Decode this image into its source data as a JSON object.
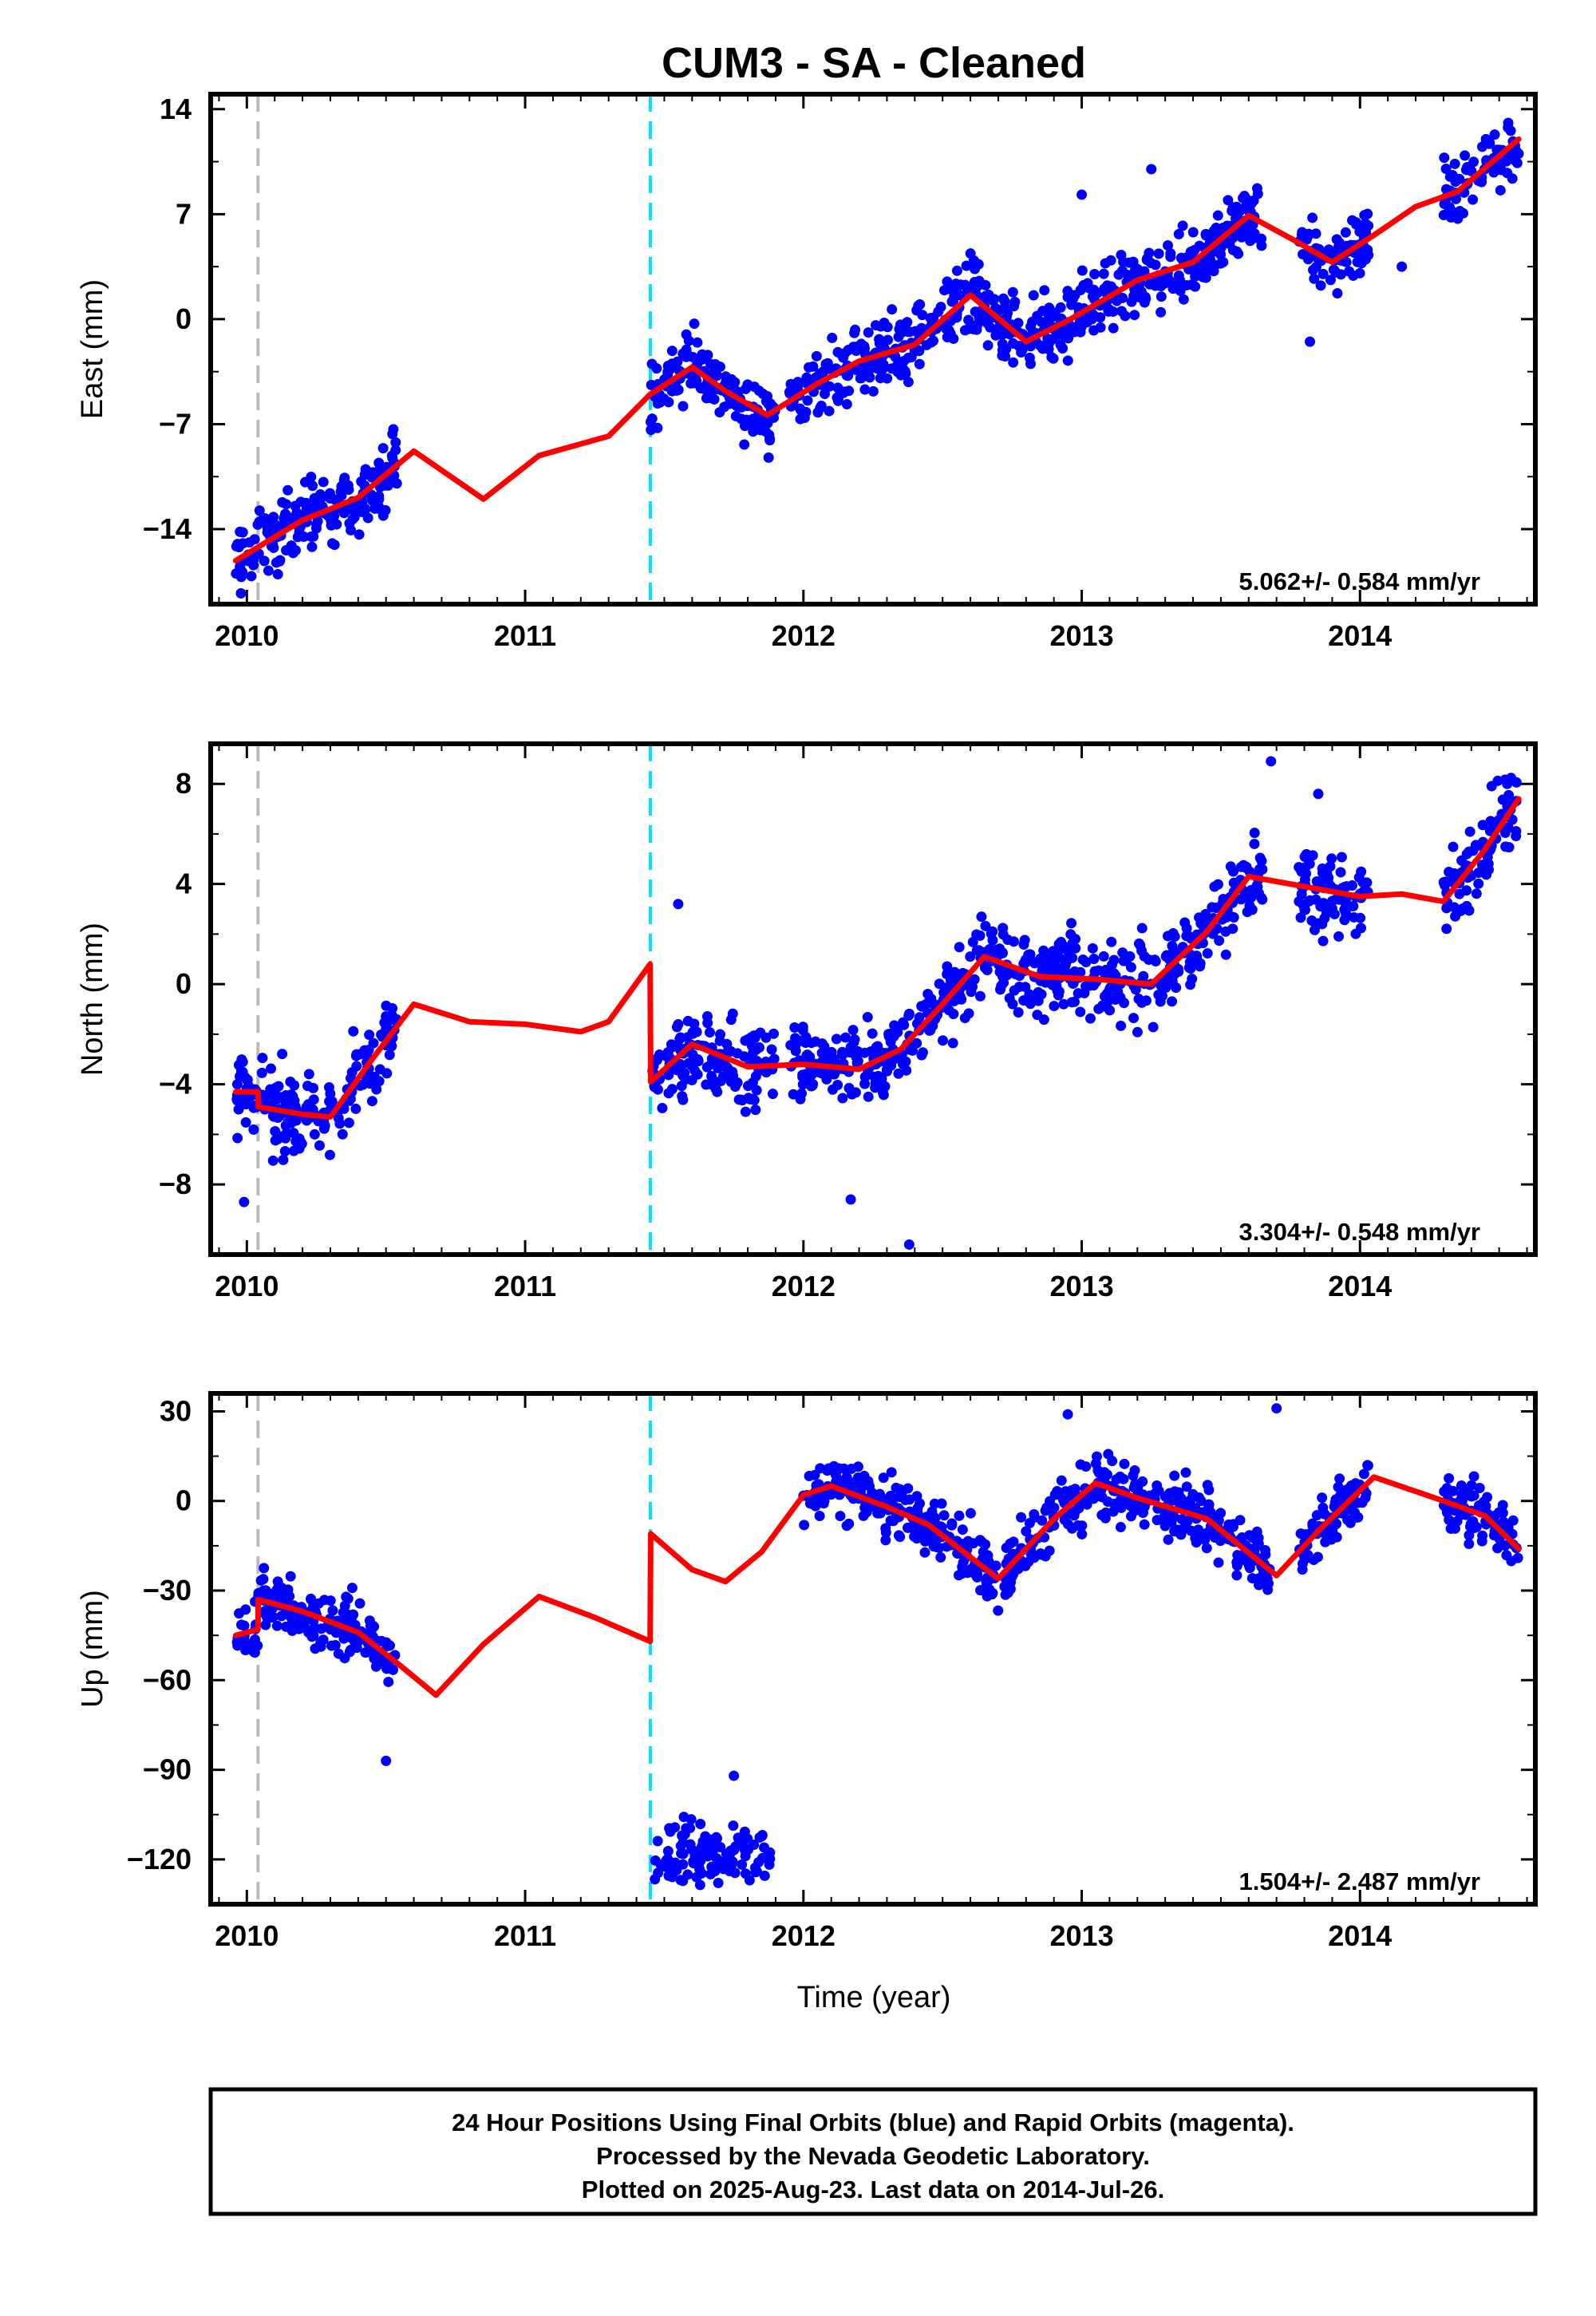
{
  "title": "CUM3  - SA - Cleaned",
  "xlabel": "Time (year)",
  "caption": [
    "24 Hour Positions Using Final Orbits (blue) and Rapid Orbits (magenta).",
    "Processed by the Nevada Geodetic Laboratory.",
    "Plotted on 2025-Aug-23. Last data on 2014-Jul-26."
  ],
  "colors": {
    "points": "#0000ff",
    "model": "#ff0000",
    "equipment_change": "#bbbbbb",
    "event": "#00e5ff"
  },
  "chart_data": [
    {
      "type": "scatter",
      "name": "east",
      "ylabel": "East (mm)",
      "rate_label": "5.062+/- 0.584 mm/yr",
      "xlim": [
        2009.87,
        2014.63
      ],
      "ylim": [
        -19,
        15
      ],
      "xticks": [
        "2010",
        "2011",
        "2012",
        "2013",
        "2014"
      ],
      "yticks": [
        "14",
        "7",
        "0",
        "−7",
        "−14"
      ],
      "ytick_values": [
        14,
        7,
        0,
        -7,
        -14
      ],
      "vlines": [
        {
          "x": 2010.04,
          "color": "gray"
        },
        {
          "x": 2011.45,
          "color": "cyan"
        }
      ],
      "data_segments": [
        [
          2009.96,
          2010.54
        ],
        [
          2011.45,
          2011.9
        ],
        [
          2011.95,
          2012.28
        ],
        [
          2012.28,
          2013.65
        ],
        [
          2013.78,
          2014.03
        ],
        [
          2014.3,
          2014.57
        ]
      ],
      "trend": [
        [
          2009.96,
          -16.1
        ],
        [
          2010.2,
          -13.4
        ],
        [
          2010.4,
          -11.9
        ],
        [
          2010.6,
          -8.8
        ],
        [
          2010.85,
          -12.0
        ],
        [
          2011.05,
          -9.1
        ],
        [
          2011.3,
          -7.8
        ],
        [
          2011.45,
          -5.0
        ],
        [
          2011.6,
          -3.2
        ],
        [
          2011.72,
          -4.8
        ],
        [
          2011.87,
          -6.4
        ],
        [
          2012.05,
          -4.3
        ],
        [
          2012.2,
          -2.8
        ],
        [
          2012.4,
          -1.7
        ],
        [
          2012.6,
          1.6
        ],
        [
          2012.8,
          -1.5
        ],
        [
          2012.95,
          -0.1
        ],
        [
          2013.2,
          2.6
        ],
        [
          2013.4,
          3.8
        ],
        [
          2013.6,
          6.9
        ],
        [
          2013.75,
          5.4
        ],
        [
          2013.9,
          3.8
        ],
        [
          2014.05,
          5.6
        ],
        [
          2014.2,
          7.5
        ],
        [
          2014.35,
          8.5
        ],
        [
          2014.57,
          12.0
        ]
      ],
      "noise_sd": 1.6,
      "outliers": [
        [
          2013.0,
          8.3
        ],
        [
          2013.82,
          -1.5
        ],
        [
          2014.15,
          3.5
        ],
        [
          2013.25,
          10.0
        ]
      ]
    },
    {
      "type": "scatter",
      "name": "north",
      "ylabel": "North (mm)",
      "rate_label": "3.304+/- 0.548 mm/yr",
      "xlim": [
        2009.87,
        2014.63
      ],
      "ylim": [
        -10.8,
        9.6
      ],
      "xticks": [
        "2010",
        "2011",
        "2012",
        "2013",
        "2014"
      ],
      "yticks": [
        "8",
        "4",
        "0",
        "−4",
        "−8"
      ],
      "ytick_values": [
        8,
        4,
        0,
        -4,
        -8
      ],
      "vlines": [
        {
          "x": 2010.04,
          "color": "gray"
        },
        {
          "x": 2011.45,
          "color": "cyan"
        }
      ],
      "data_segments": [
        [
          2009.96,
          2010.54
        ],
        [
          2011.45,
          2011.9
        ],
        [
          2011.95,
          2012.28
        ],
        [
          2012.28,
          2013.65
        ],
        [
          2013.78,
          2014.03
        ],
        [
          2014.3,
          2014.57
        ]
      ],
      "trend": [
        [
          2009.96,
          -4.3
        ],
        [
          2010.04,
          -4.3
        ],
        [
          2010.041,
          -4.9
        ],
        [
          2010.2,
          -5.2
        ],
        [
          2010.3,
          -5.3
        ],
        [
          2010.45,
          -3.0
        ],
        [
          2010.6,
          -0.8
        ],
        [
          2010.8,
          -1.5
        ],
        [
          2011.0,
          -1.6
        ],
        [
          2011.2,
          -1.9
        ],
        [
          2011.3,
          -1.5
        ],
        [
          2011.449,
          0.8
        ],
        [
          2011.451,
          -3.9
        ],
        [
          2011.6,
          -2.4
        ],
        [
          2011.8,
          -3.3
        ],
        [
          2012.0,
          -3.2
        ],
        [
          2012.2,
          -3.4
        ],
        [
          2012.35,
          -2.6
        ],
        [
          2012.5,
          -0.8
        ],
        [
          2012.65,
          1.1
        ],
        [
          2012.85,
          0.3
        ],
        [
          2013.05,
          0.2
        ],
        [
          2013.25,
          0.0
        ],
        [
          2013.45,
          2.1
        ],
        [
          2013.6,
          4.3
        ],
        [
          2013.8,
          3.9
        ],
        [
          2014.0,
          3.5
        ],
        [
          2014.15,
          3.6
        ],
        [
          2014.3,
          3.3
        ],
        [
          2014.45,
          5.4
        ],
        [
          2014.57,
          7.4
        ]
      ],
      "noise_sd": 1.1,
      "outliers": [
        [
          2009.99,
          -8.7
        ],
        [
          2011.55,
          3.2
        ],
        [
          2012.17,
          -8.6
        ],
        [
          2012.38,
          -10.4
        ],
        [
          2013.68,
          8.9
        ],
        [
          2013.85,
          7.6
        ]
      ]
    },
    {
      "type": "scatter",
      "name": "up",
      "ylabel": "Up (mm)",
      "rate_label": "1.504+/- 2.487 mm/yr",
      "xlim": [
        2009.87,
        2014.63
      ],
      "ylim": [
        -135,
        36
      ],
      "xticks": [
        "2010",
        "2011",
        "2012",
        "2013",
        "2014"
      ],
      "yticks": [
        "30",
        "0",
        "−30",
        "−60",
        "−90",
        "−120"
      ],
      "ytick_values": [
        30,
        0,
        -30,
        -60,
        -90,
        -120
      ],
      "vlines": [
        {
          "x": 2010.04,
          "color": "gray"
        },
        {
          "x": 2011.45,
          "color": "cyan"
        }
      ],
      "data_segments": [
        [
          2009.96,
          2010.54
        ],
        [
          2012.0,
          2013.68
        ],
        [
          2013.78,
          2014.03
        ],
        [
          2014.3,
          2014.57
        ]
      ],
      "trend": [
        [
          2009.96,
          -45
        ],
        [
          2010.04,
          -43
        ],
        [
          2010.041,
          -33
        ],
        [
          2010.2,
          -37
        ],
        [
          2010.4,
          -44
        ],
        [
          2010.55,
          -55
        ],
        [
          2010.68,
          -65
        ],
        [
          2010.85,
          -48
        ],
        [
          2011.05,
          -32
        ],
        [
          2011.25,
          -39
        ],
        [
          2011.449,
          -47
        ],
        [
          2011.451,
          -11
        ],
        [
          2011.6,
          -23
        ],
        [
          2011.72,
          -27
        ],
        [
          2011.85,
          -17
        ],
        [
          2012.0,
          2
        ],
        [
          2012.1,
          5
        ],
        [
          2012.3,
          -2
        ],
        [
          2012.45,
          -8
        ],
        [
          2012.7,
          -26
        ],
        [
          2012.9,
          -6
        ],
        [
          2013.05,
          6
        ],
        [
          2013.2,
          1
        ],
        [
          2013.45,
          -6
        ],
        [
          2013.7,
          -25
        ],
        [
          2013.85,
          -10
        ],
        [
          2014.05,
          8
        ],
        [
          2014.3,
          0
        ],
        [
          2014.45,
          -5
        ],
        [
          2014.57,
          -16
        ]
      ],
      "noise_sd": 7,
      "clusters": [
        {
          "x0": 2011.46,
          "x1": 2011.88,
          "y": -118,
          "sd": 7
        }
      ],
      "outliers": [
        [
          2010.5,
          -87
        ],
        [
          2013.7,
          31
        ],
        [
          2011.75,
          -92
        ],
        [
          2012.95,
          29
        ]
      ]
    }
  ]
}
